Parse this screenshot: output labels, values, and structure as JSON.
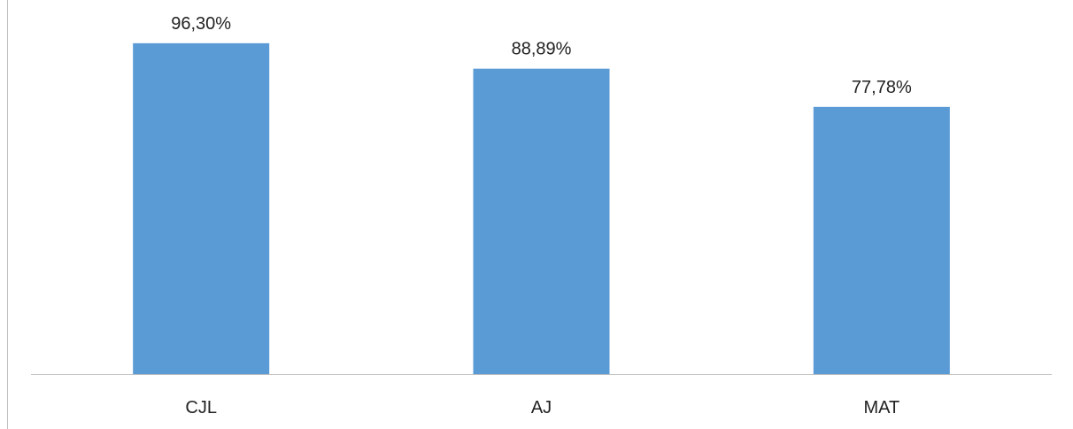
{
  "chart_data": {
    "type": "bar",
    "categories": [
      "CJL",
      "AJ",
      "MAT"
    ],
    "values": [
      96.3,
      88.89,
      77.78
    ],
    "value_labels": [
      "96,30%",
      "88,89%",
      "77,78%"
    ],
    "unit": "%",
    "ylim": [
      0,
      100
    ],
    "grid": false,
    "legend": "none",
    "title": "",
    "xlabel": "",
    "ylabel": ""
  },
  "colors": {
    "bar": "#5b9bd5",
    "axis": "#bfbfbf",
    "text": "#222222"
  }
}
